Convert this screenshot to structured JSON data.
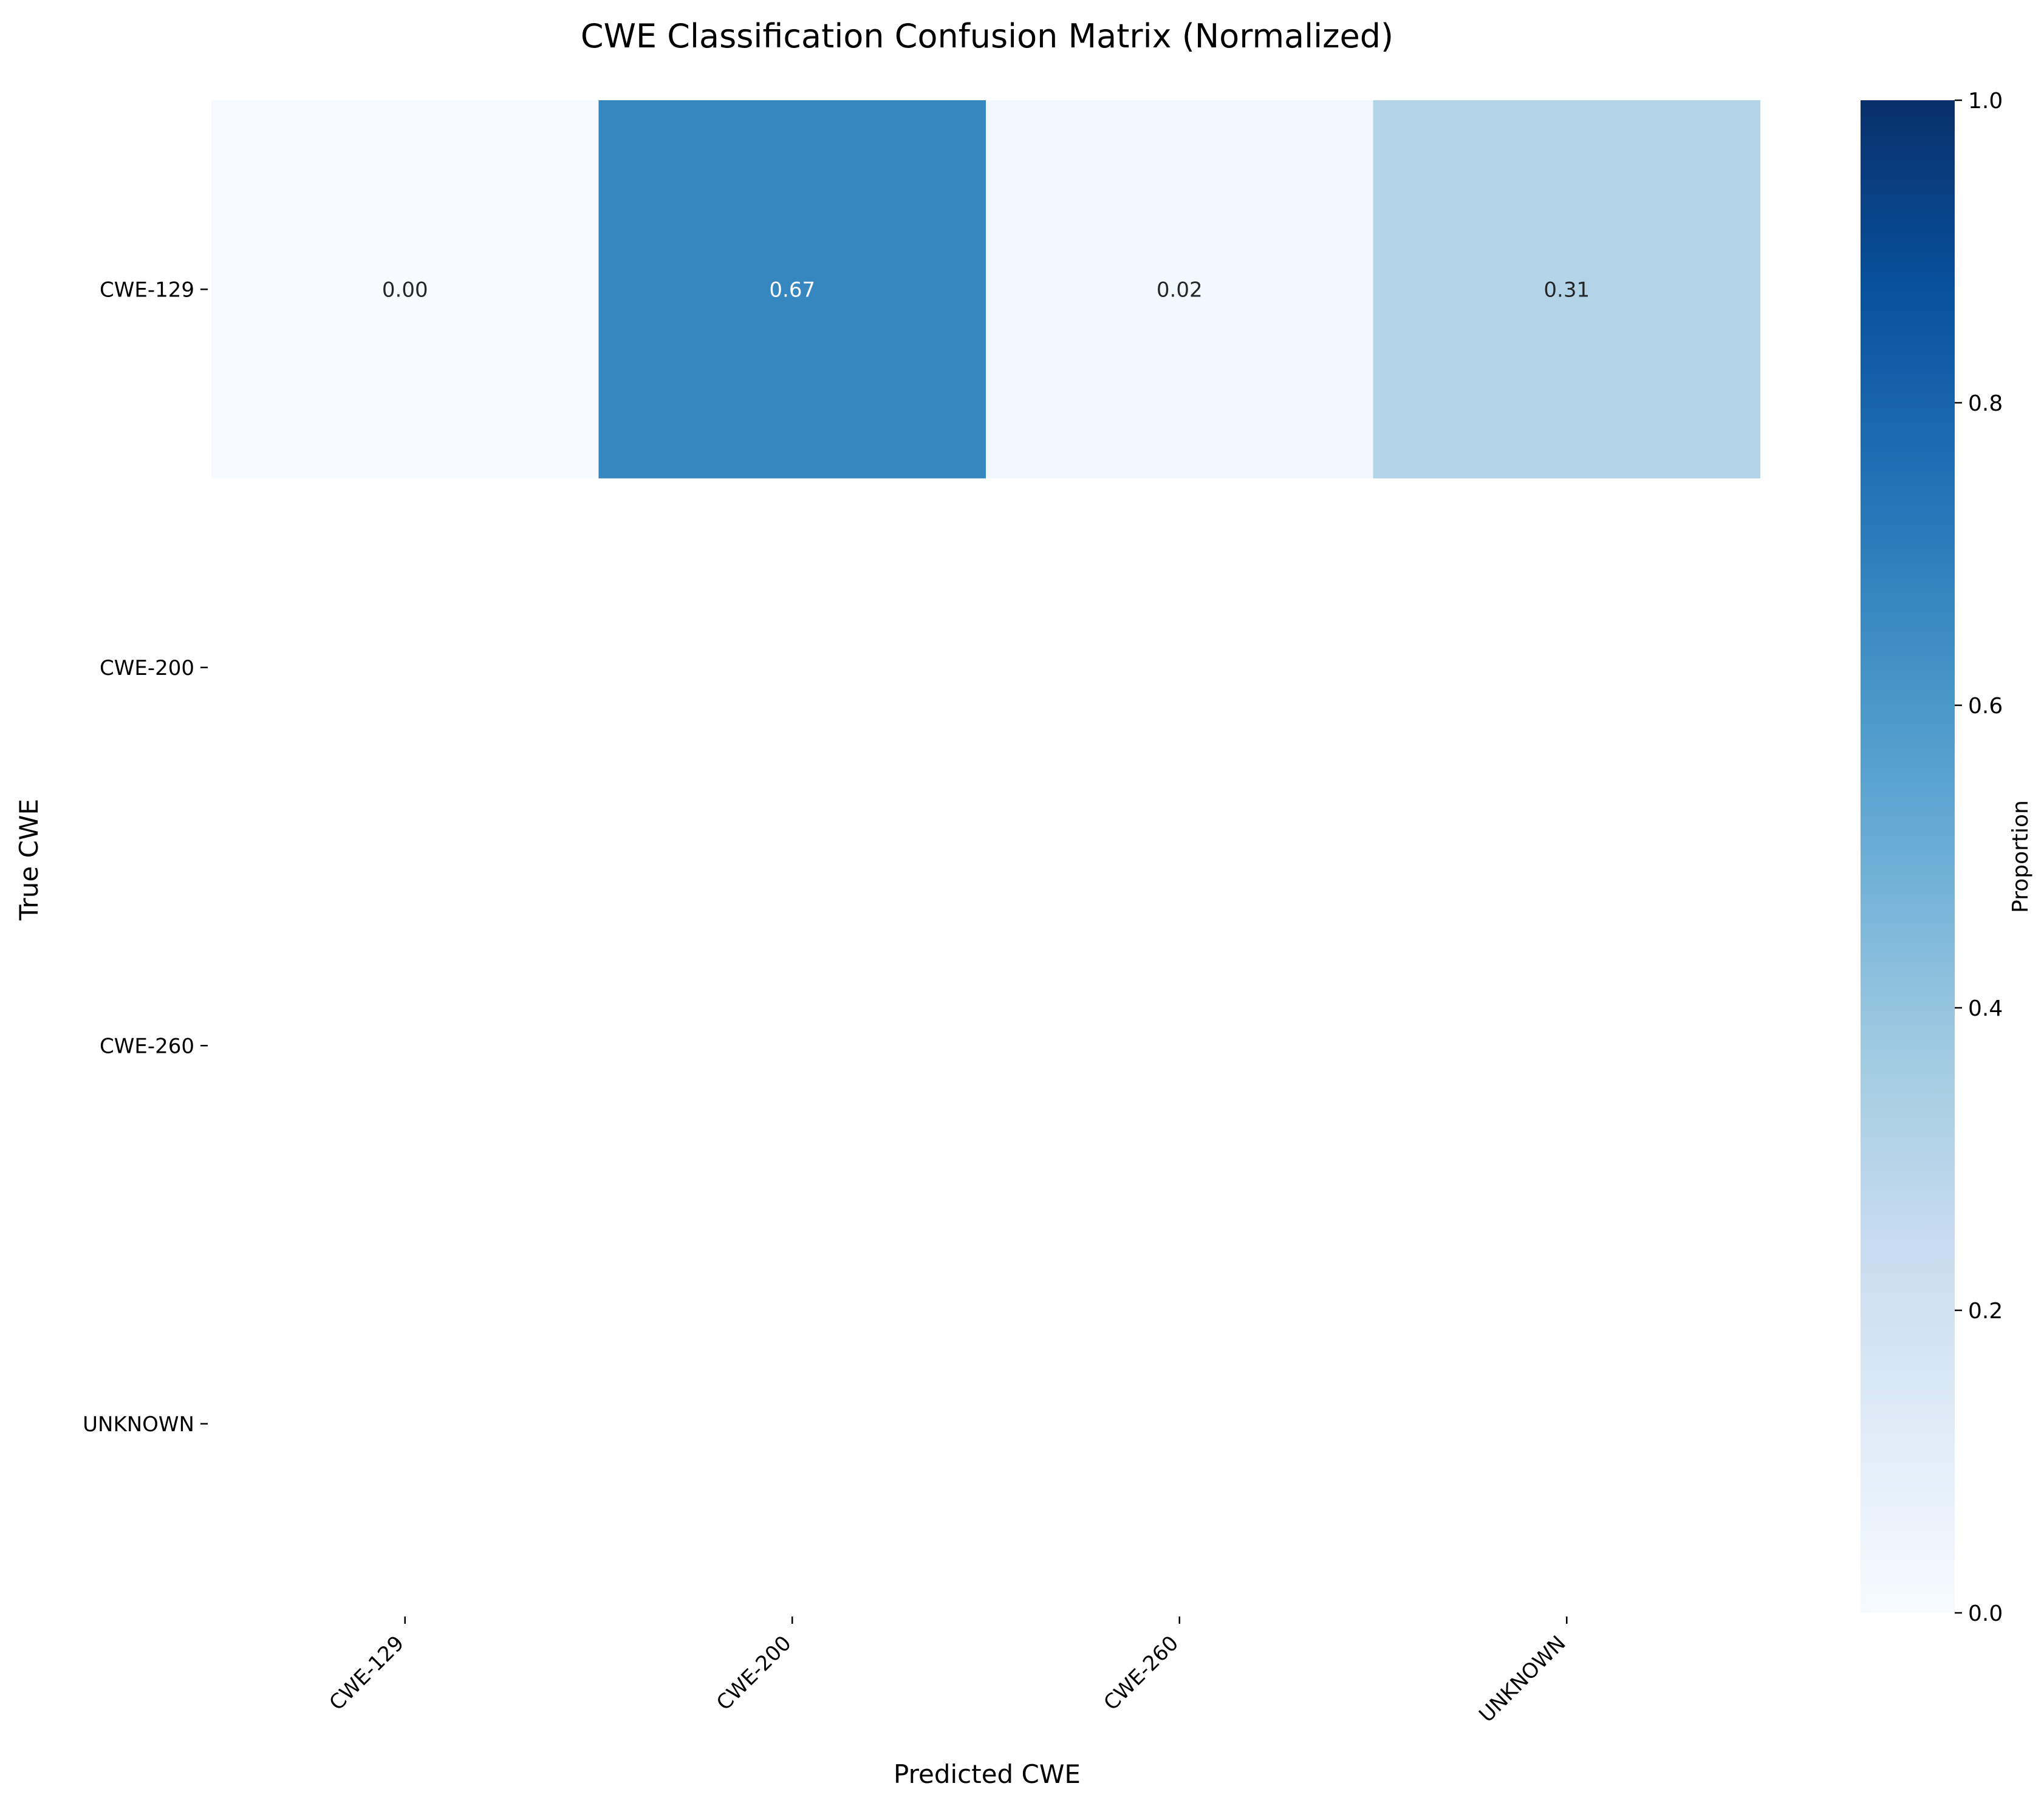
{
  "chart_data": {
    "type": "heatmap",
    "title": "CWE Classification Confusion Matrix (Normalized)",
    "xlabel": "Predicted CWE",
    "ylabel": "True CWE",
    "x_categories": [
      "CWE-129",
      "CWE-200",
      "CWE-260",
      "UNKNOWN"
    ],
    "y_categories": [
      "CWE-129",
      "CWE-200",
      "CWE-260",
      "UNKNOWN"
    ],
    "values": [
      [
        0.0,
        0.67,
        0.02,
        0.31
      ],
      [
        null,
        null,
        null,
        null
      ],
      [
        null,
        null,
        null,
        null
      ],
      [
        null,
        null,
        null,
        null
      ]
    ],
    "value_labels": [
      [
        "0.00",
        "0.67",
        "0.02",
        "0.31"
      ],
      [
        "",
        "",
        "",
        ""
      ],
      [
        "",
        "",
        "",
        ""
      ],
      [
        "",
        "",
        "",
        ""
      ]
    ],
    "colorbar": {
      "label": "Proportion",
      "range": [
        0,
        1
      ],
      "ticks": [
        "0.0",
        "0.2",
        "0.4",
        "0.6",
        "0.8",
        "1.0"
      ],
      "colormap": "Blues"
    },
    "legend": "none",
    "grid": false
  }
}
